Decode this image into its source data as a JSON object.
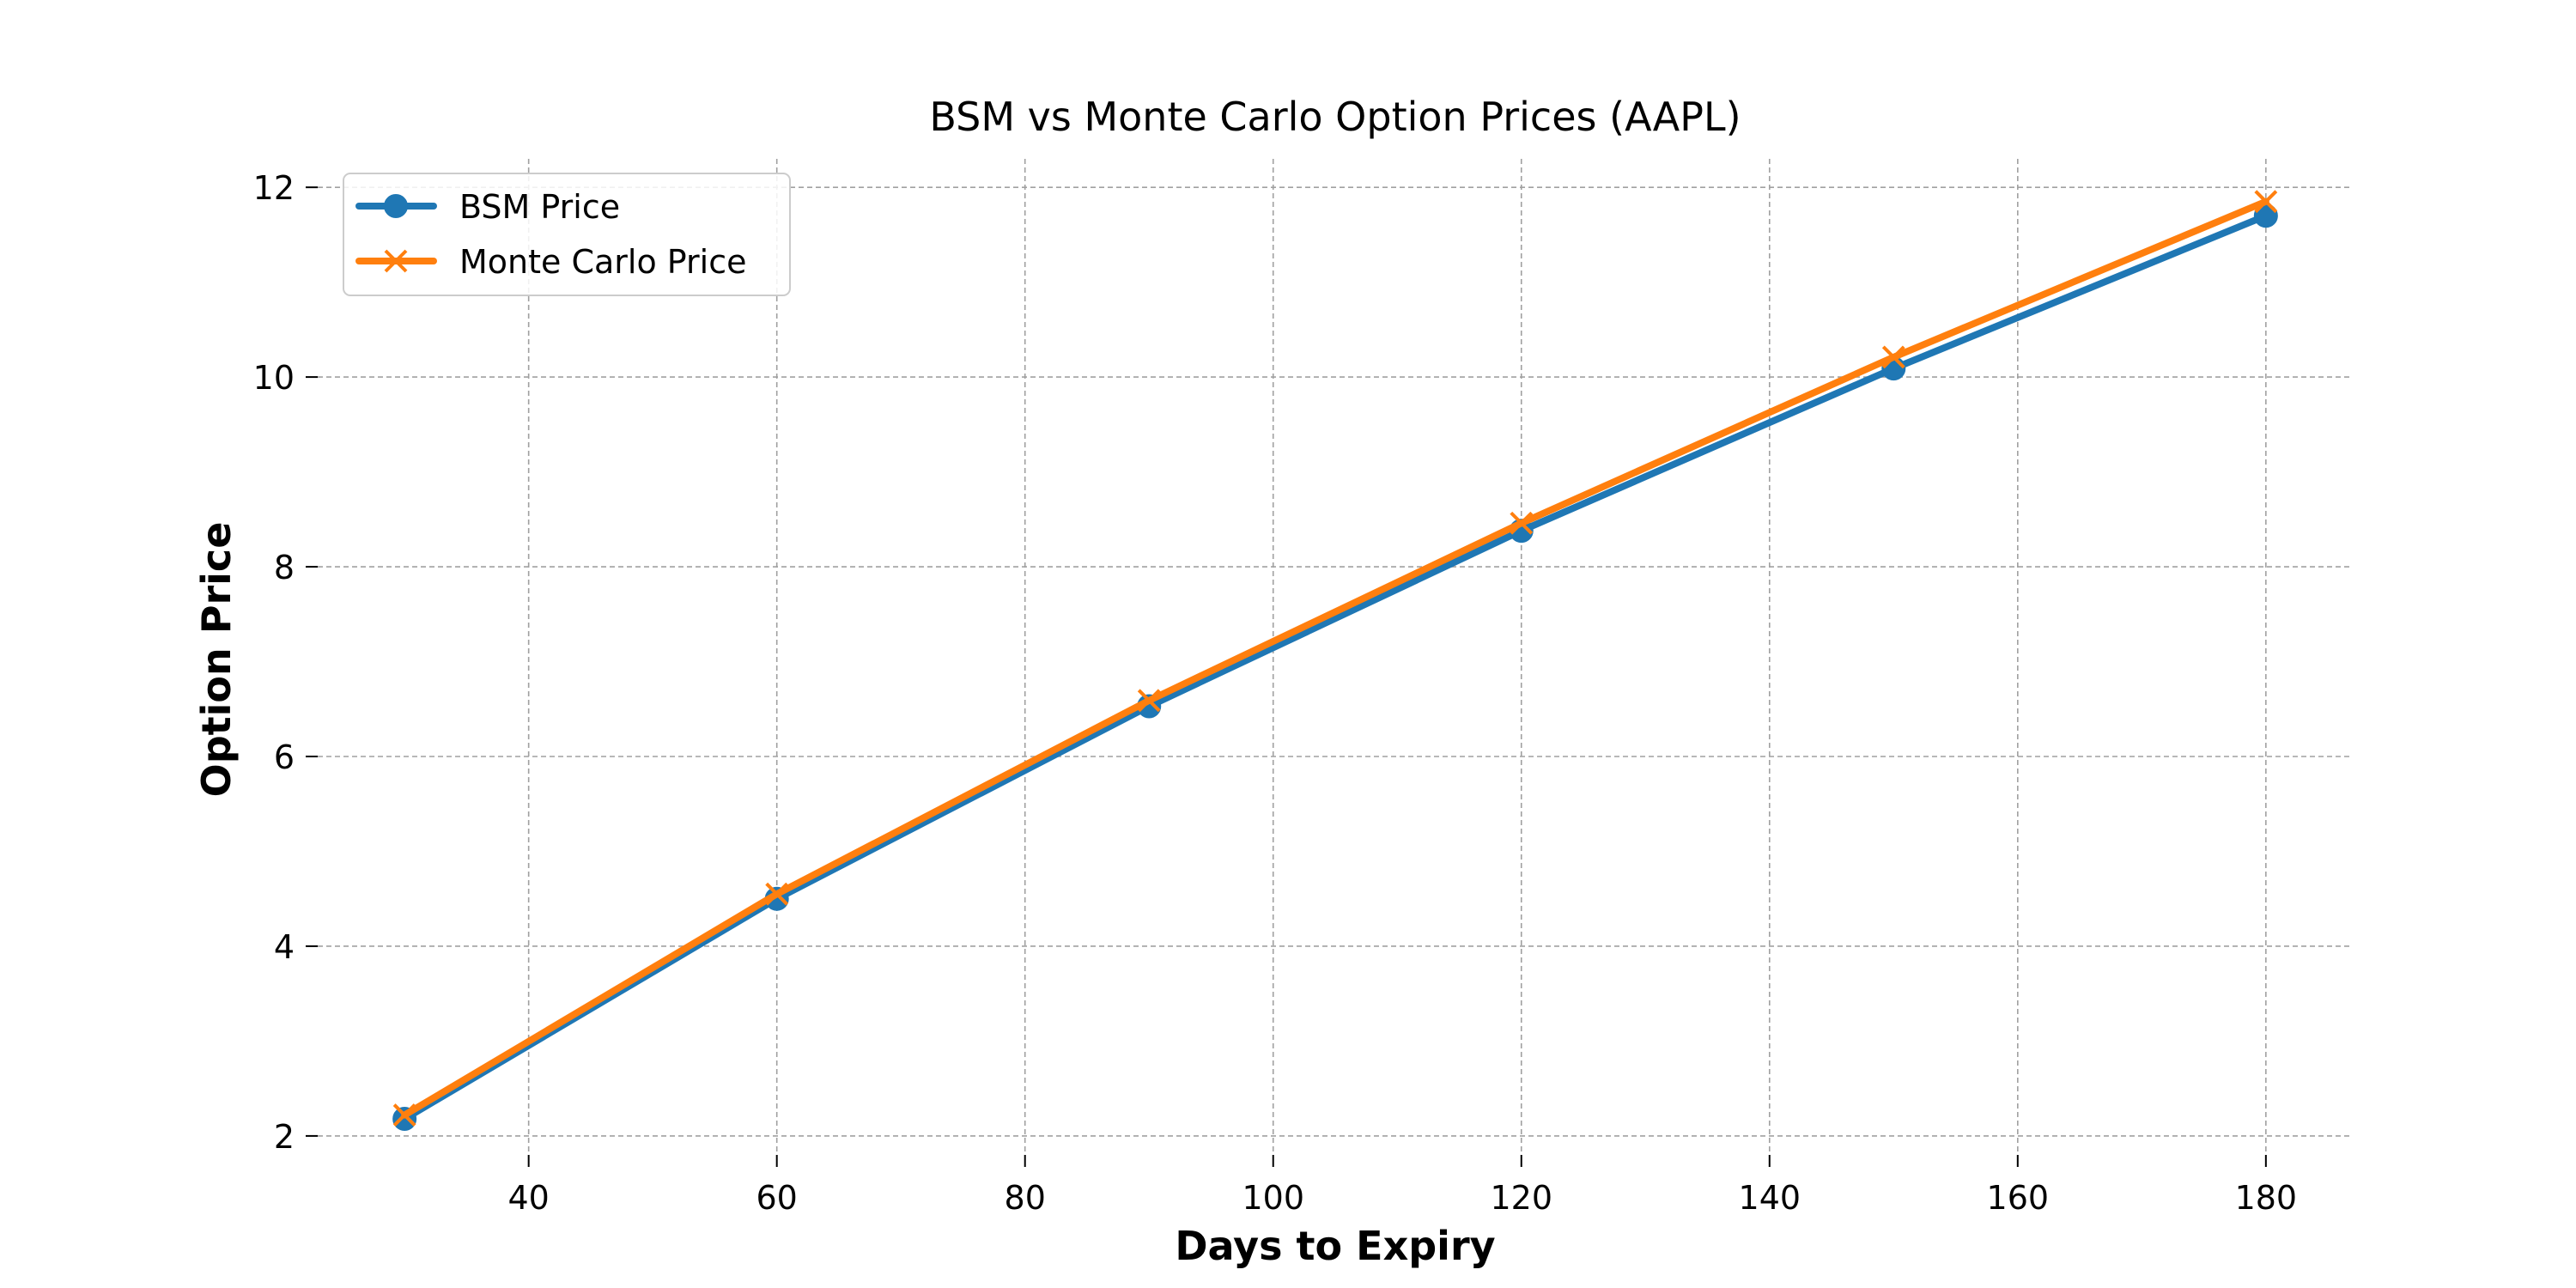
{
  "chart_data": {
    "type": "line",
    "title": "BSM vs Monte Carlo Option Prices (AAPL)",
    "xlabel": "Days to Expiry",
    "ylabel": "Option Price",
    "x": [
      30,
      60,
      90,
      120,
      150,
      180
    ],
    "xlim": [
      23,
      187
    ],
    "ylim": [
      1.8,
      12.3
    ],
    "xticks": [
      40,
      60,
      80,
      100,
      120,
      140,
      160,
      180
    ],
    "yticks": [
      2,
      4,
      6,
      8,
      10,
      12
    ],
    "grid": true,
    "legend_position": "upper-left",
    "series": [
      {
        "name": "BSM Price",
        "values": [
          2.18,
          4.5,
          6.53,
          8.38,
          10.09,
          11.7
        ],
        "color": "#1f77b4",
        "marker": "circle"
      },
      {
        "name": "Monte Carlo Price",
        "values": [
          2.22,
          4.55,
          6.59,
          8.46,
          10.21,
          11.85
        ],
        "color": "#ff7f0e",
        "marker": "x"
      }
    ]
  }
}
